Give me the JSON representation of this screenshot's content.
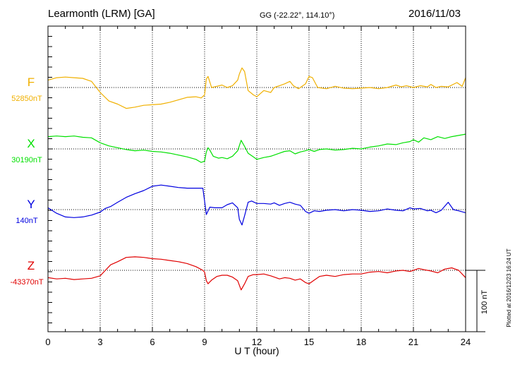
{
  "header": {
    "station": "Learmonth (LRM)  [GA]",
    "coords": "GG (-22.22°, 114.10°)",
    "date": "2016/11/03"
  },
  "plotted_note": "Plotted at 2016/12/23 16:24 UT",
  "scale_bar_label": "100 nT",
  "chart_data": {
    "type": "line",
    "title": "Learmonth (LRM)  [GA]",
    "xlabel": "U T (hour)",
    "xlim": [
      0,
      24
    ],
    "xticks": [
      0,
      3,
      6,
      9,
      12,
      15,
      18,
      21,
      24
    ],
    "grid": true,
    "scale_bar_nT": 100,
    "series": [
      {
        "name": "F",
        "baseline_label": "52850nT",
        "baseline_nT": 52850,
        "color": "#f0b000",
        "points": [
          [
            0,
            12
          ],
          [
            0.5,
            16
          ],
          [
            1,
            17
          ],
          [
            1.5,
            16
          ],
          [
            2,
            15
          ],
          [
            2.5,
            10
          ],
          [
            3,
            -8
          ],
          [
            3.5,
            -22
          ],
          [
            4,
            -27
          ],
          [
            4.5,
            -34
          ],
          [
            5,
            -32
          ],
          [
            5.5,
            -29
          ],
          [
            6,
            -28
          ],
          [
            6.5,
            -27
          ],
          [
            7,
            -24
          ],
          [
            7.5,
            -20
          ],
          [
            8,
            -16
          ],
          [
            8.5,
            -15
          ],
          [
            8.8,
            -17
          ],
          [
            9.0,
            -12
          ],
          [
            9.1,
            14
          ],
          [
            9.2,
            18
          ],
          [
            9.4,
            0
          ],
          [
            9.7,
            2
          ],
          [
            10,
            4
          ],
          [
            10.3,
            0
          ],
          [
            10.6,
            3
          ],
          [
            10.9,
            12
          ],
          [
            11.0,
            22
          ],
          [
            11.15,
            32
          ],
          [
            11.3,
            26
          ],
          [
            11.5,
            -5
          ],
          [
            11.8,
            -12
          ],
          [
            12,
            -15
          ],
          [
            12.4,
            -5
          ],
          [
            12.8,
            -8
          ],
          [
            13,
            0
          ],
          [
            13.3,
            3
          ],
          [
            13.6,
            6
          ],
          [
            13.9,
            10
          ],
          [
            14.1,
            3
          ],
          [
            14.4,
            -2
          ],
          [
            14.8,
            6
          ],
          [
            15,
            18
          ],
          [
            15.2,
            16
          ],
          [
            15.5,
            0
          ],
          [
            16,
            -2
          ],
          [
            16.5,
            2
          ],
          [
            17,
            -1
          ],
          [
            17.5,
            -2
          ],
          [
            18,
            -1
          ],
          [
            18.5,
            0
          ],
          [
            19,
            -2
          ],
          [
            19.5,
            0
          ],
          [
            20,
            4
          ],
          [
            20.3,
            1
          ],
          [
            20.6,
            3
          ],
          [
            21,
            0
          ],
          [
            21.4,
            3
          ],
          [
            21.8,
            1
          ],
          [
            22,
            5
          ],
          [
            22.3,
            0
          ],
          [
            22.6,
            2
          ],
          [
            23,
            1
          ],
          [
            23.5,
            8
          ],
          [
            23.8,
            2
          ],
          [
            24,
            16
          ]
        ]
      },
      {
        "name": "X",
        "baseline_label": "30190nT",
        "baseline_nT": 30190,
        "color": "#00e000",
        "points": [
          [
            0,
            20
          ],
          [
            0.5,
            21
          ],
          [
            1,
            20
          ],
          [
            1.5,
            21
          ],
          [
            2,
            19
          ],
          [
            2.5,
            18
          ],
          [
            3,
            10
          ],
          [
            3.5,
            5
          ],
          [
            4,
            2
          ],
          [
            4.5,
            -1
          ],
          [
            5,
            -3
          ],
          [
            5.5,
            -2
          ],
          [
            6,
            -4
          ],
          [
            6.5,
            -5
          ],
          [
            7,
            -7
          ],
          [
            7.5,
            -10
          ],
          [
            8,
            -13
          ],
          [
            8.5,
            -17
          ],
          [
            8.8,
            -22
          ],
          [
            9.0,
            -20
          ],
          [
            9.1,
            -5
          ],
          [
            9.2,
            2
          ],
          [
            9.3,
            -2
          ],
          [
            9.5,
            -12
          ],
          [
            9.8,
            -15
          ],
          [
            10,
            -14
          ],
          [
            10.3,
            -16
          ],
          [
            10.6,
            -12
          ],
          [
            10.9,
            -3
          ],
          [
            11.1,
            14
          ],
          [
            11.3,
            4
          ],
          [
            11.5,
            -7
          ],
          [
            11.8,
            -13
          ],
          [
            12,
            -17
          ],
          [
            12.4,
            -14
          ],
          [
            12.8,
            -12
          ],
          [
            13,
            -10
          ],
          [
            13.3,
            -7
          ],
          [
            13.6,
            -4
          ],
          [
            13.9,
            -3
          ],
          [
            14.2,
            -8
          ],
          [
            14.5,
            -5
          ],
          [
            14.8,
            -3
          ],
          [
            15,
            -1
          ],
          [
            15.3,
            -4
          ],
          [
            15.6,
            -1
          ],
          [
            16,
            0
          ],
          [
            16.5,
            -2
          ],
          [
            17,
            -1
          ],
          [
            17.5,
            1
          ],
          [
            18,
            0
          ],
          [
            18.5,
            3
          ],
          [
            19,
            5
          ],
          [
            19.5,
            8
          ],
          [
            20,
            7
          ],
          [
            20.4,
            10
          ],
          [
            20.8,
            12
          ],
          [
            21,
            15
          ],
          [
            21.3,
            11
          ],
          [
            21.6,
            18
          ],
          [
            22,
            15
          ],
          [
            22.4,
            20
          ],
          [
            22.8,
            17
          ],
          [
            23.2,
            20
          ],
          [
            23.6,
            22
          ],
          [
            24,
            24
          ]
        ]
      },
      {
        "name": "Y",
        "baseline_label": "140nT",
        "baseline_nT": 140,
        "color": "#0000e0",
        "points": [
          [
            0,
            3
          ],
          [
            0.5,
            -6
          ],
          [
            1,
            -12
          ],
          [
            1.5,
            -13
          ],
          [
            2,
            -12
          ],
          [
            2.5,
            -9
          ],
          [
            3,
            -4
          ],
          [
            3.3,
            2
          ],
          [
            3.6,
            5
          ],
          [
            4,
            12
          ],
          [
            4.5,
            20
          ],
          [
            5,
            26
          ],
          [
            5.5,
            31
          ],
          [
            6,
            38
          ],
          [
            6.5,
            40
          ],
          [
            7,
            38
          ],
          [
            7.5,
            36
          ],
          [
            8,
            35
          ],
          [
            8.5,
            35
          ],
          [
            8.9,
            35
          ],
          [
            9.0,
            14
          ],
          [
            9.1,
            -8
          ],
          [
            9.3,
            4
          ],
          [
            9.6,
            3
          ],
          [
            10,
            3
          ],
          [
            10.3,
            8
          ],
          [
            10.6,
            11
          ],
          [
            10.9,
            3
          ],
          [
            11.0,
            -16
          ],
          [
            11.15,
            -25
          ],
          [
            11.3,
            -10
          ],
          [
            11.5,
            12
          ],
          [
            11.7,
            14
          ],
          [
            12,
            10
          ],
          [
            12.4,
            10
          ],
          [
            12.8,
            9
          ],
          [
            13,
            11
          ],
          [
            13.3,
            7
          ],
          [
            13.6,
            10
          ],
          [
            13.9,
            12
          ],
          [
            14.2,
            9
          ],
          [
            14.5,
            7
          ],
          [
            14.8,
            -3
          ],
          [
            15,
            -6
          ],
          [
            15.3,
            -2
          ],
          [
            15.6,
            -3
          ],
          [
            16,
            -1
          ],
          [
            16.5,
            0
          ],
          [
            17,
            -2
          ],
          [
            17.5,
            0
          ],
          [
            18,
            -1
          ],
          [
            18.5,
            -3
          ],
          [
            19,
            -2
          ],
          [
            19.5,
            1
          ],
          [
            20,
            -1
          ],
          [
            20.4,
            -2
          ],
          [
            20.8,
            3
          ],
          [
            21,
            1
          ],
          [
            21.4,
            2
          ],
          [
            21.8,
            -2
          ],
          [
            22,
            -1
          ],
          [
            22.3,
            -5
          ],
          [
            22.6,
            -1
          ],
          [
            23,
            12
          ],
          [
            23.3,
            0
          ],
          [
            23.6,
            -2
          ],
          [
            24,
            -5
          ]
        ]
      },
      {
        "name": "Z",
        "baseline_label": "-43370nT",
        "baseline_nT": -43370,
        "color": "#e00000",
        "points": [
          [
            0,
            -12
          ],
          [
            0.5,
            -14
          ],
          [
            1,
            -13
          ],
          [
            1.5,
            -15
          ],
          [
            2,
            -14
          ],
          [
            2.5,
            -13
          ],
          [
            3,
            -9
          ],
          [
            3.3,
            0
          ],
          [
            3.6,
            9
          ],
          [
            4,
            14
          ],
          [
            4.5,
            21
          ],
          [
            5,
            22
          ],
          [
            5.5,
            21
          ],
          [
            6,
            19
          ],
          [
            6.5,
            18
          ],
          [
            7,
            16
          ],
          [
            7.5,
            14
          ],
          [
            8,
            11
          ],
          [
            8.5,
            6
          ],
          [
            8.9,
            0
          ],
          [
            9.0,
            -3
          ],
          [
            9.1,
            -17
          ],
          [
            9.2,
            -22
          ],
          [
            9.4,
            -16
          ],
          [
            9.7,
            -10
          ],
          [
            10,
            -8
          ],
          [
            10.3,
            -8
          ],
          [
            10.6,
            -11
          ],
          [
            10.9,
            -17
          ],
          [
            11.1,
            -32
          ],
          [
            11.3,
            -22
          ],
          [
            11.5,
            -10
          ],
          [
            11.8,
            -7
          ],
          [
            12,
            -7
          ],
          [
            12.4,
            -6
          ],
          [
            12.8,
            -9
          ],
          [
            13,
            -11
          ],
          [
            13.3,
            -14
          ],
          [
            13.6,
            -12
          ],
          [
            13.9,
            -13
          ],
          [
            14.2,
            -16
          ],
          [
            14.5,
            -14
          ],
          [
            14.8,
            -20
          ],
          [
            15,
            -22
          ],
          [
            15.3,
            -16
          ],
          [
            15.6,
            -10
          ],
          [
            16,
            -8
          ],
          [
            16.5,
            -10
          ],
          [
            17,
            -7
          ],
          [
            17.5,
            -6
          ],
          [
            18,
            -6
          ],
          [
            18.5,
            -3
          ],
          [
            19,
            -2
          ],
          [
            19.5,
            -4
          ],
          [
            20,
            -1
          ],
          [
            20.4,
            0
          ],
          [
            20.8,
            -2
          ],
          [
            21,
            0
          ],
          [
            21.3,
            3
          ],
          [
            21.6,
            1
          ],
          [
            22,
            -1
          ],
          [
            22.4,
            -4
          ],
          [
            22.8,
            2
          ],
          [
            23.2,
            4
          ],
          [
            23.6,
            0
          ],
          [
            24,
            -12
          ]
        ]
      }
    ]
  }
}
